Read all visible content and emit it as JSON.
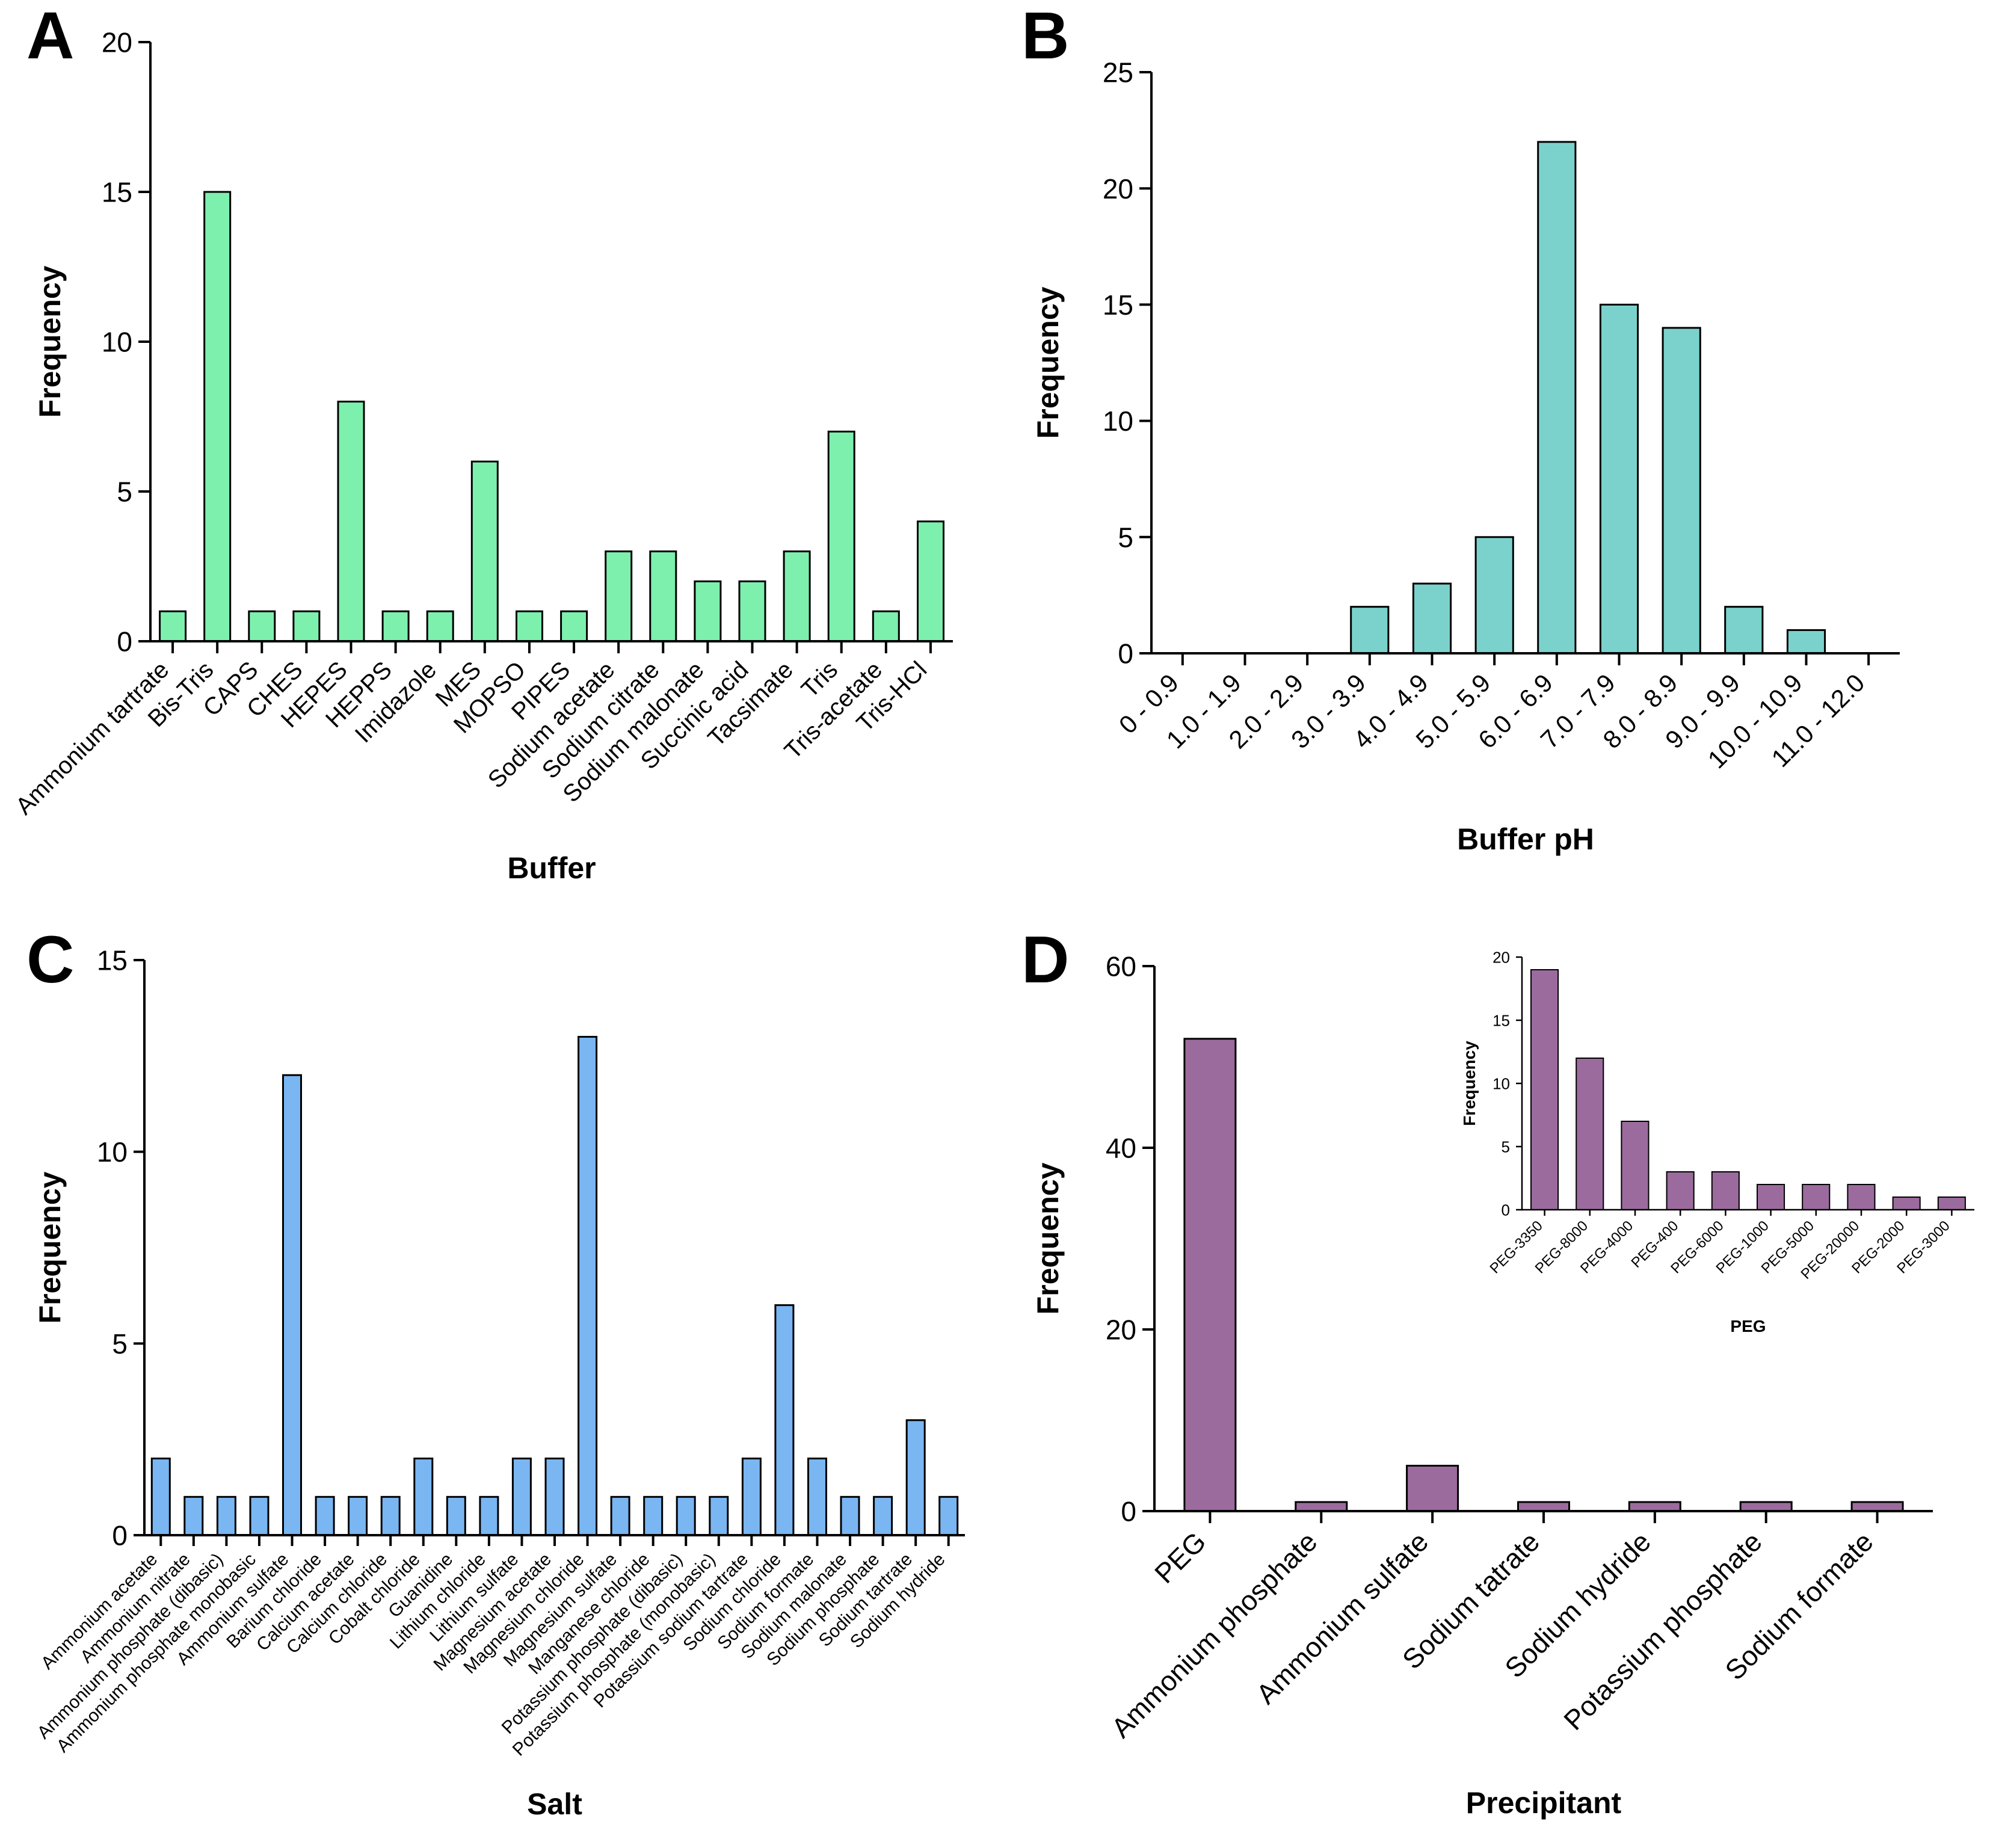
{
  "chart_data": [
    {
      "panel": "A",
      "type": "bar",
      "categories": [
        "Ammonium tartrate",
        "Bis-Tris",
        "CAPS",
        "CHES",
        "HEPES",
        "HEPPS",
        "Imidazole",
        "MES",
        "MOPSO",
        "PIPES",
        "Sodium acetate",
        "Sodium citrate",
        "Sodium malonate",
        "Succinic acid",
        "Tacsimate",
        "Tris",
        "Tris-acetate",
        "Tris-HCl"
      ],
      "values": [
        1,
        15,
        1,
        1,
        8,
        1,
        1,
        6,
        1,
        1,
        3,
        3,
        2,
        2,
        3,
        7,
        1,
        4
      ],
      "title": "",
      "xlabel": "Buffer",
      "ylabel": "Frequency",
      "ylim": [
        0,
        20
      ],
      "yticks": [
        0,
        5,
        10,
        15,
        20
      ],
      "grid": false,
      "legend": null,
      "bar_color": "#7df0ae",
      "edge_color": "#000000"
    },
    {
      "panel": "B",
      "type": "bar",
      "categories": [
        "0 - 0.9",
        "1.0 - 1.9",
        "2.0 - 2.9",
        "3.0 - 3.9",
        "4.0 - 4.9",
        "5.0 - 5.9",
        "6.0 - 6.9",
        "7.0 - 7.9",
        "8.0 - 8.9",
        "9.0 - 9.9",
        "10.0 - 10.9",
        "11.0 - 12.0"
      ],
      "values": [
        0,
        0,
        0,
        2,
        3,
        5,
        22,
        15,
        14,
        2,
        1,
        0
      ],
      "title": "",
      "xlabel": "Buffer pH",
      "ylabel": "Frequency",
      "ylim": [
        0,
        25
      ],
      "yticks": [
        0,
        5,
        10,
        15,
        20,
        25
      ],
      "grid": false,
      "legend": null,
      "bar_color": "#7bd2cc",
      "edge_color": "#000000"
    },
    {
      "panel": "C",
      "type": "bar",
      "categories": [
        "Ammonium acetate",
        "Ammonium nitrate",
        "Ammonium phosphate (dibasic)",
        "Ammonium phosphate monobasic",
        "Ammonium sulfate",
        "Barium chloride",
        "Calcium acetate",
        "Calcium chloride",
        "Cobalt chloride",
        "Guanidine",
        "Lithium chloride",
        "Lithium sulfate",
        "Magnesium acetate",
        "Magnesium chloride",
        "Magnesium sulfate",
        "Manganese chloride",
        "Potassium phosphate (dibasic)",
        "Potassium phosphate (monobasic)",
        "Potassium sodium tartrate",
        "Sodium chloride",
        "Sodium formate",
        "Sodium malonate",
        "Sodium phosphate",
        "Sodium tartrate",
        "Sodium hydride"
      ],
      "values": [
        2,
        1,
        1,
        1,
        12,
        1,
        1,
        1,
        2,
        1,
        1,
        2,
        2,
        13,
        1,
        1,
        1,
        1,
        2,
        6,
        2,
        1,
        1,
        3,
        1
      ],
      "title": "",
      "xlabel": "Salt",
      "ylabel": "Frequency",
      "ylim": [
        0,
        15
      ],
      "yticks": [
        0,
        5,
        10,
        15
      ],
      "grid": false,
      "legend": null,
      "bar_color": "#79b6f2",
      "edge_color": "#000000"
    },
    {
      "panel": "D",
      "type": "bar",
      "categories": [
        "PEG",
        "Ammonium phosphate",
        "Ammonium sulfate",
        "Sodium tatrate",
        "Sodium hydride",
        "Potassium phosphate",
        "Sodium formate"
      ],
      "values": [
        52,
        1,
        5,
        1,
        1,
        1,
        1
      ],
      "title": "",
      "xlabel": "Precipitant",
      "ylabel": "Frequency",
      "ylim": [
        0,
        60
      ],
      "yticks": [
        0,
        20,
        40,
        60
      ],
      "grid": false,
      "legend": null,
      "bar_color": "#9c6b9e",
      "edge_color": "#000000"
    },
    {
      "panel": "D-inset",
      "type": "bar",
      "categories": [
        "PEG-3350",
        "PEG-8000",
        "PEG-4000",
        "PEG-400",
        "PEG-6000",
        "PEG-1000",
        "PEG-5000",
        "PEG-20000",
        "PEG-2000",
        "PEG-3000"
      ],
      "values": [
        19,
        12,
        7,
        3,
        3,
        2,
        2,
        2,
        1,
        1
      ],
      "title": "",
      "xlabel": "PEG",
      "ylabel": "Frequency",
      "ylim": [
        0,
        20
      ],
      "yticks": [
        0,
        5,
        10,
        15,
        20
      ],
      "grid": false,
      "legend": null,
      "bar_color": "#9c6b9e",
      "edge_color": "#000000"
    }
  ]
}
